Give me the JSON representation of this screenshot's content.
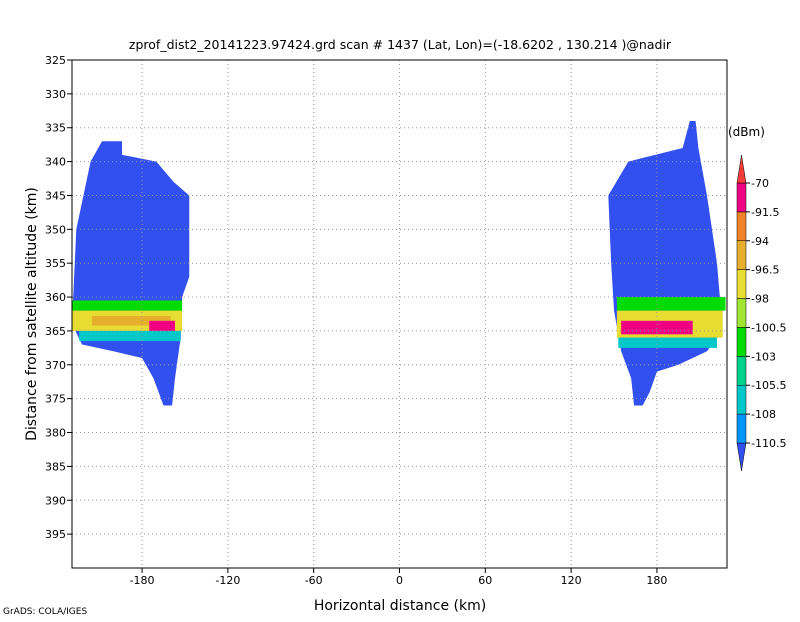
{
  "chart_data": {
    "type": "shaded",
    "title": "zprof_dist2_20141223.97424.grd   scan # 1437   (Lat, Lon)=(-18.6202 , 130.214 )@nadir",
    "x_label": "Horizontal distance (km)",
    "y_label": "Distance from satellite altitude (km)",
    "footer": "GrADS: COLA/IGES",
    "colorbar_unit": "(dBm)",
    "xlim": [
      -229,
      229
    ],
    "ylim": [
      325,
      400
    ],
    "y_inverted": true,
    "xticks": [
      -180,
      -120,
      -60,
      0,
      60,
      120,
      180
    ],
    "yticks": [
      325,
      330,
      335,
      340,
      345,
      350,
      355,
      360,
      365,
      370,
      375,
      380,
      385,
      390,
      395
    ],
    "grid": true,
    "levels": [
      -110.5,
      -108,
      -105.5,
      -103,
      -100.5,
      -98,
      -96.5,
      -94,
      -91.5,
      -70
    ],
    "colors": [
      "#3250f0",
      "#0096ff",
      "#00c8c8",
      "#00d28c",
      "#00dc00",
      "#a0e632",
      "#e6dc32",
      "#e6af2d",
      "#f08228",
      "#f00082",
      "#fa3c3c"
    ],
    "swaths": [
      {
        "value": -111,
        "polygon": [
          [
            -208,
            337
          ],
          [
            -194,
            337
          ],
          [
            -194,
            339
          ],
          [
            -170,
            340
          ],
          [
            -158,
            343
          ],
          [
            -147,
            345
          ],
          [
            -147,
            357
          ],
          [
            -152,
            360
          ],
          [
            -153,
            366
          ],
          [
            -157,
            372
          ],
          [
            -159,
            376
          ],
          [
            -165,
            376
          ],
          [
            -172,
            372
          ],
          [
            -180,
            369
          ],
          [
            -200,
            368
          ],
          [
            -222,
            367
          ],
          [
            -229,
            364
          ],
          [
            -226,
            350
          ],
          [
            -216,
            340
          ]
        ]
      },
      {
        "value": -111,
        "polygon": [
          [
            146,
            345
          ],
          [
            160,
            340
          ],
          [
            198,
            338
          ],
          [
            203,
            334
          ],
          [
            207,
            334
          ],
          [
            209,
            338
          ],
          [
            215,
            345
          ],
          [
            222,
            355
          ],
          [
            226,
            365
          ],
          [
            215,
            368
          ],
          [
            195,
            370
          ],
          [
            180,
            371
          ],
          [
            175,
            374
          ],
          [
            170,
            376
          ],
          [
            164,
            376
          ],
          [
            162,
            372
          ],
          [
            155,
            368
          ],
          [
            150,
            362
          ],
          [
            148,
            355
          ]
        ]
      }
    ],
    "bands": [
      {
        "value": -102,
        "x": [
          -229,
          -152
        ],
        "y": [
          360.5,
          362
        ]
      },
      {
        "value": -97,
        "x": [
          -229,
          -152
        ],
        "y": [
          362,
          365
        ]
      },
      {
        "value": -95,
        "x": [
          -215,
          -160
        ],
        "y": [
          362.8,
          364.2
        ]
      },
      {
        "value": -90,
        "x": [
          -175,
          -157
        ],
        "y": [
          363.5,
          365
        ]
      },
      {
        "value": -106,
        "x": [
          -224,
          -153
        ],
        "y": [
          365,
          366.5
        ]
      },
      {
        "value": -102,
        "x": [
          152,
          228
        ],
        "y": [
          360,
          362
        ]
      },
      {
        "value": -97,
        "x": [
          152,
          226
        ],
        "y": [
          362,
          366
        ]
      },
      {
        "value": -90,
        "x": [
          155,
          205
        ],
        "y": [
          363.5,
          365.5
        ]
      },
      {
        "value": -106,
        "x": [
          153,
          222
        ],
        "y": [
          366,
          367.5
        ]
      }
    ]
  }
}
